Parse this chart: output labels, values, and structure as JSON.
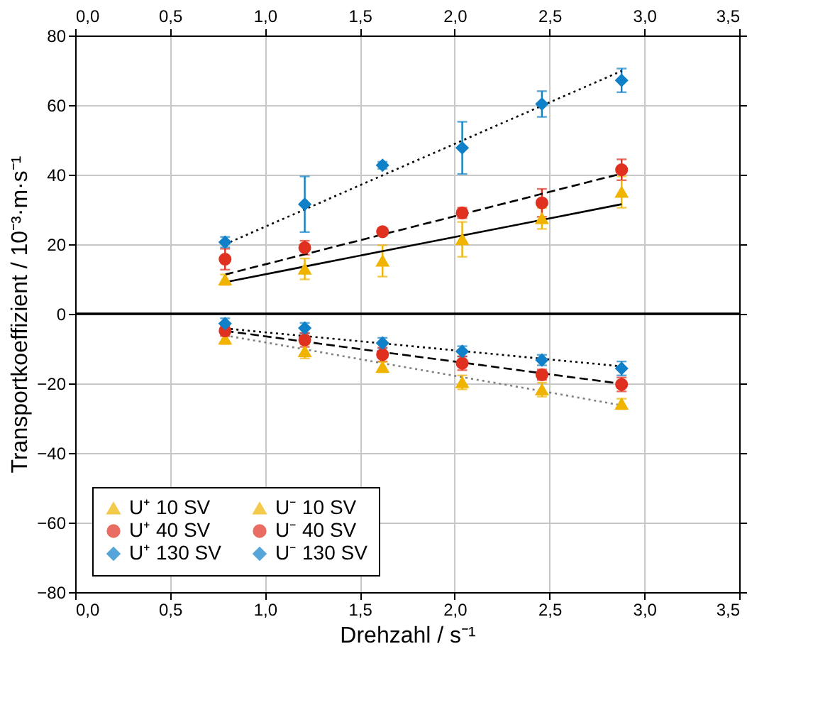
{
  "chart_data": {
    "type": "scatter",
    "xlabel": "Drehzahl / s⁻¹",
    "ylabel": "Transportkoeffizient / 10⁻³·m·s⁻¹",
    "xlim": [
      0,
      3.5
    ],
    "ylim": [
      -80,
      80
    ],
    "x2lim": [
      0,
      3.5
    ],
    "xticks": [
      {
        "value": 0,
        "label": "0,0"
      },
      {
        "value": 0.5,
        "label": "0,5"
      },
      {
        "value": 1,
        "label": "1,0"
      },
      {
        "value": 1.5,
        "label": "1,5"
      },
      {
        "value": 2,
        "label": "2,0"
      },
      {
        "value": 2.5,
        "label": "2,5"
      },
      {
        "value": 3,
        "label": "3,0"
      },
      {
        "value": 3.5,
        "label": "3,5"
      }
    ],
    "x2ticks": [
      {
        "value": 0,
        "label": "0,0"
      },
      {
        "value": 0.5,
        "label": "0,5"
      },
      {
        "value": 1,
        "label": "1,0"
      },
      {
        "value": 1.5,
        "label": "1,5"
      },
      {
        "value": 2,
        "label": "2,0"
      },
      {
        "value": 2.5,
        "label": "2,5"
      },
      {
        "value": 3,
        "label": "3,0"
      },
      {
        "value": 3.5,
        "label": "3,5"
      }
    ],
    "yticks": [
      -80,
      -60,
      -40,
      -20,
      0,
      20,
      40,
      60,
      80
    ],
    "grid": true,
    "legend": "bottom left",
    "ref_lines": [
      {
        "axis": "y",
        "value": 0,
        "color": "#000000",
        "line_style": "solid"
      }
    ],
    "x": [
      0.79,
      1.21,
      1.62,
      2.04,
      2.46,
      2.88
    ],
    "series": [
      {
        "name": "U⁺ 10 SV",
        "color": "#f0b400",
        "marker": "triangle",
        "values": [
          9.8,
          12.9,
          15.2,
          21.4,
          27.4,
          35.0
        ],
        "errors": [
          1.5,
          3,
          4.5,
          5,
          3,
          4.5
        ]
      },
      {
        "name": "U⁺ 40 SV",
        "color": "#e03020",
        "marker": "circle",
        "values": [
          15.7,
          19.0,
          23.6,
          29.0,
          31.9,
          41.4
        ],
        "errors": [
          3,
          2,
          1,
          1.5,
          4,
          3
        ]
      },
      {
        "name": "U⁺ 130 SV",
        "color": "#1080c8",
        "marker": "diamond",
        "values": [
          20.6,
          31.5,
          42.7,
          47.7,
          60.3,
          67.1
        ],
        "errors": [
          1.5,
          8,
          1,
          7.5,
          3.7,
          3.4
        ]
      },
      {
        "name": "U⁻ 10 SV",
        "color": "#f0b400",
        "marker": "triangle",
        "values": [
          -7.2,
          -10.8,
          -15.3,
          -19.7,
          -21.8,
          -25.9
        ],
        "errors": [
          1.5,
          2,
          1.5,
          2,
          2,
          1.5
        ]
      },
      {
        "name": "U⁻ 40 SV",
        "color": "#e03020",
        "marker": "circle",
        "values": [
          -4.9,
          -7.5,
          -11.7,
          -14.2,
          -17.5,
          -20.3
        ],
        "errors": [
          1.5,
          2,
          2,
          2,
          1.5,
          2
        ]
      },
      {
        "name": "U⁻ 130 SV",
        "color": "#1080c8",
        "marker": "diamond",
        "values": [
          -2.8,
          -4.1,
          -8.4,
          -10.8,
          -13.3,
          -15.7
        ],
        "errors": [
          1.5,
          1.5,
          1.5,
          1.5,
          1.5,
          2
        ]
      },
      {
        "type": "line",
        "color": "#000000",
        "line_style": "solid",
        "values": [
          9.1,
          13.6,
          18.0,
          22.5,
          27.0,
          31.5
        ]
      },
      {
        "type": "line",
        "color": "#000000",
        "line_style": "dashed",
        "values": [
          11.3,
          17.1,
          22.8,
          28.6,
          34.5,
          40.3
        ]
      },
      {
        "type": "line",
        "color": "#000000",
        "line_style": "dotted",
        "values": [
          20.0,
          30.0,
          39.8,
          49.8,
          59.8,
          69.8
        ]
      },
      {
        "type": "line",
        "color": "#000000",
        "line_style": "dotted",
        "values": [
          -4.2,
          -6.4,
          -8.5,
          -10.7,
          -12.9,
          -15.1
        ]
      },
      {
        "type": "line",
        "color": "#000000",
        "line_style": "dashed",
        "values": [
          -4.9,
          -8.0,
          -11.0,
          -14.0,
          -17.1,
          -20.1
        ]
      },
      {
        "type": "line",
        "color": "#808080",
        "line_style": "dotted",
        "values": [
          -6.2,
          -10.2,
          -14.2,
          -18.2,
          -22.2,
          -26.3
        ]
      }
    ]
  }
}
